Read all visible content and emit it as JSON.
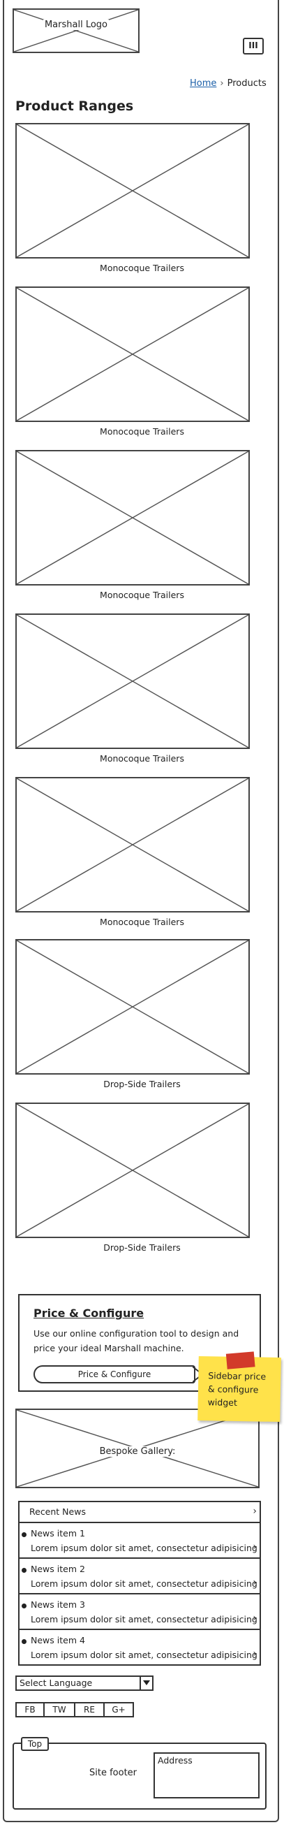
{
  "header": {
    "logo_label": "Marshall Logo",
    "menu_icon": "hamburger-menu-icon",
    "menu_glyph": "III"
  },
  "breadcrumb": {
    "home": "Home",
    "separator": "›",
    "current": "Products"
  },
  "page_title": "Product Ranges",
  "products": [
    {
      "caption": "Monocoque Trailers"
    },
    {
      "caption": "Monocoque Trailers"
    },
    {
      "caption": "Monocoque Trailers"
    },
    {
      "caption": "Monocoque Trailers"
    },
    {
      "caption": "Monocoque Trailers"
    },
    {
      "caption": "Drop-Side Trailers"
    },
    {
      "caption": "Drop-Side Trailers"
    }
  ],
  "configure": {
    "title": "Price & Configure",
    "text": "Use our online configuration tool to design and price your ideal Marshall machine.",
    "button": "Price & Configure"
  },
  "sticky_note": {
    "text": "Sidebar price & configure widget",
    "color": "#ffe24a",
    "tape_color": "#d23a2a"
  },
  "gallery": {
    "label": "Bespoke Gallery:"
  },
  "news": {
    "heading": "Recent News",
    "items": [
      {
        "title": "News item 1",
        "text": "Lorem ipsum dolor sit amet, consectetur adipisicing"
      },
      {
        "title": "News item 2",
        "text": "Lorem ipsum dolor sit amet, consectetur adipisicing"
      },
      {
        "title": "News item 3",
        "text": "Lorem ipsum dolor sit amet, consectetur adipisicing"
      },
      {
        "title": "News item 4",
        "text": "Lorem ipsum dolor sit amet, consectetur adipisicing"
      }
    ]
  },
  "language": {
    "selected": "Select Language"
  },
  "social": [
    "FB",
    "TW",
    "RE",
    "G+"
  ],
  "footer": {
    "tab": "Top",
    "text": "Site footer",
    "address": "Address"
  },
  "colors": {
    "link": "#1b5fa8",
    "outline": "#333333"
  }
}
